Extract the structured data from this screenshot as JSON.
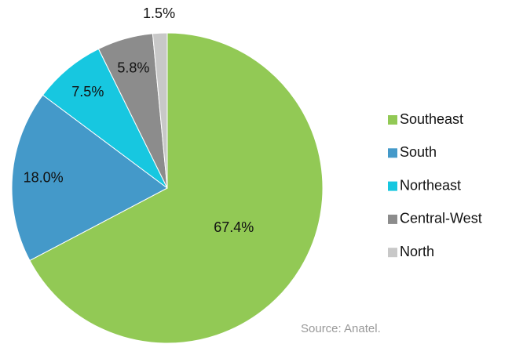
{
  "chart_data": {
    "type": "pie",
    "categories": [
      "Southeast",
      "South",
      "Northeast",
      "Central-West",
      "North"
    ],
    "values": [
      67.4,
      18.0,
      7.5,
      5.8,
      1.5
    ],
    "value_labels": [
      "67.4%",
      "18.0%",
      "7.5%",
      "5.8%",
      "1.5%"
    ],
    "colors": [
      "#92c955",
      "#4499c9",
      "#17c7e0",
      "#8c8c8c",
      "#c8c8c8"
    ],
    "legend": "right",
    "source": "Source: Anatel."
  }
}
